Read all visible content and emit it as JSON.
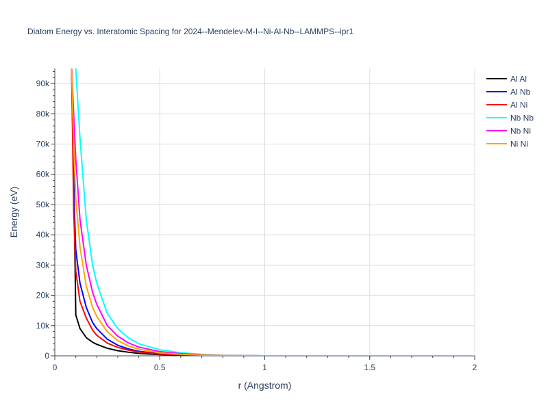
{
  "chart_data": {
    "type": "line",
    "title": "Diatom Energy vs. Interatomic Spacing for 2024--Mendelev-M-I--Ni-Al-Nb--LAMMPS--ipr1",
    "xlabel": "r (Angstrom)",
    "ylabel": "Energy (eV)",
    "xlim": [
      0,
      2
    ],
    "ylim": [
      0,
      95000
    ],
    "x_ticks": [
      0,
      0.5,
      1,
      1.5,
      2
    ],
    "x_tick_labels": [
      "0",
      "0.5",
      "1",
      "1.5",
      "2"
    ],
    "y_ticks": [
      0,
      10000,
      20000,
      30000,
      40000,
      50000,
      60000,
      70000,
      80000,
      90000
    ],
    "y_tick_labels": [
      "0",
      "10k",
      "20k",
      "30k",
      "40k",
      "50k",
      "60k",
      "70k",
      "80k",
      "90k"
    ],
    "grid": true,
    "legend_position": "top-right",
    "series": [
      {
        "name": "Al Al",
        "color": "#000000",
        "x": [
          0.08,
          0.09,
          0.1,
          0.12,
          0.15,
          0.18,
          0.2,
          0.25,
          0.3,
          0.35,
          0.4,
          0.5,
          0.6,
          0.7,
          0.8,
          1.0,
          1.5,
          2.0
        ],
        "y": [
          95000,
          60000,
          13500,
          9000,
          6000,
          4500,
          3800,
          2500,
          1700,
          1200,
          800,
          400,
          200,
          100,
          50,
          0,
          0,
          0
        ]
      },
      {
        "name": "Al Nb",
        "color": "#0000ff",
        "x": [
          0.08,
          0.09,
          0.1,
          0.12,
          0.15,
          0.18,
          0.2,
          0.25,
          0.3,
          0.35,
          0.4,
          0.5,
          0.6,
          0.7,
          0.8,
          1.0,
          1.5,
          2.0
        ],
        "y": [
          95000,
          55000,
          35000,
          24000,
          16000,
          11000,
          9000,
          5500,
          3500,
          2300,
          1500,
          700,
          300,
          150,
          50,
          0,
          0,
          0
        ]
      },
      {
        "name": "Al Ni",
        "color": "#ff0000",
        "x": [
          0.08,
          0.09,
          0.1,
          0.12,
          0.15,
          0.18,
          0.2,
          0.25,
          0.3,
          0.35,
          0.4,
          0.5,
          0.6,
          0.7,
          0.8,
          1.0,
          1.5,
          2.0
        ],
        "y": [
          95000,
          48000,
          28000,
          18000,
          12500,
          8500,
          6800,
          4200,
          2800,
          1900,
          1300,
          600,
          300,
          150,
          50,
          0,
          0,
          0
        ]
      },
      {
        "name": "Nb Nb",
        "color": "#00ffff",
        "x": [
          0.1,
          0.12,
          0.15,
          0.18,
          0.2,
          0.25,
          0.3,
          0.35,
          0.4,
          0.5,
          0.6,
          0.7,
          0.8,
          1.0,
          1.5,
          2.0
        ],
        "y": [
          95000,
          72000,
          45000,
          30000,
          24000,
          14000,
          9000,
          6000,
          4000,
          2000,
          1000,
          500,
          200,
          0,
          0,
          0
        ]
      },
      {
        "name": "Nb Ni",
        "color": "#ff00ff",
        "x": [
          0.08,
          0.09,
          0.1,
          0.12,
          0.15,
          0.18,
          0.2,
          0.25,
          0.3,
          0.35,
          0.4,
          0.5,
          0.6,
          0.7,
          0.8,
          1.0,
          1.5,
          2.0
        ],
        "y": [
          95000,
          80000,
          65000,
          45000,
          30000,
          21000,
          17000,
          10000,
          6500,
          4300,
          2900,
          1400,
          700,
          350,
          150,
          0,
          0,
          0
        ]
      },
      {
        "name": "Ni Ni",
        "color": "#ffa500",
        "x": [
          0.08,
          0.09,
          0.1,
          0.12,
          0.15,
          0.18,
          0.2,
          0.25,
          0.3,
          0.35,
          0.4,
          0.5,
          0.6,
          0.7,
          0.8,
          1.0,
          1.5,
          2.0
        ],
        "y": [
          95000,
          70000,
          52000,
          36000,
          23000,
          16000,
          13000,
          8000,
          5000,
          3300,
          2200,
          1000,
          500,
          250,
          100,
          0,
          0,
          0
        ]
      }
    ]
  }
}
